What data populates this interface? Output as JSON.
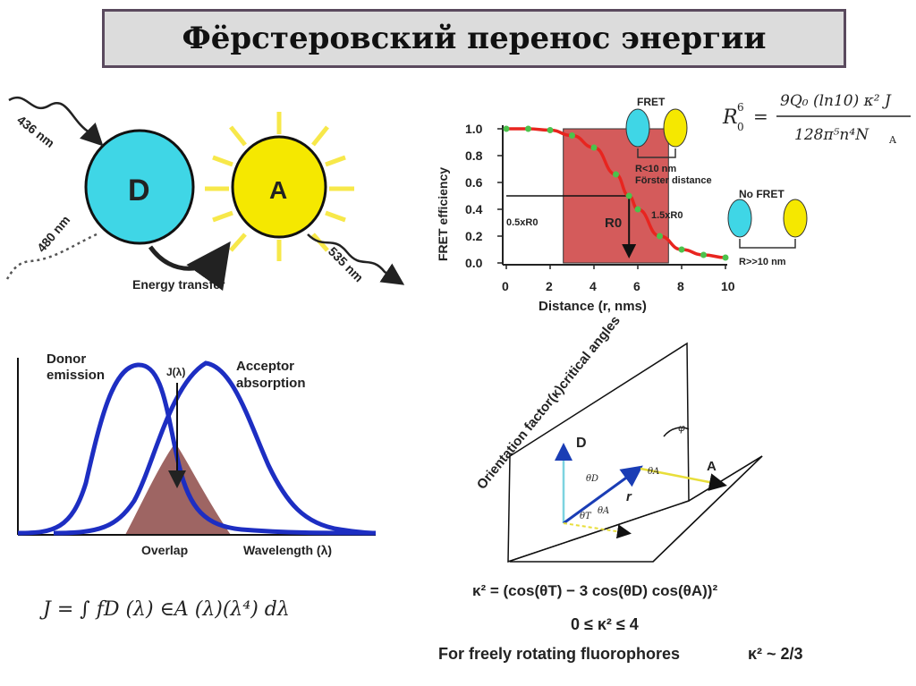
{
  "title": "Фёрстеровский перенос энергии",
  "donor_acceptor": {
    "donor_label": "D",
    "acceptor_label": "A",
    "excitation": "436 nm",
    "donor_emission": "480 nm",
    "acceptor_emission": "535 nm",
    "transfer": "Energy transfer",
    "colors": {
      "donor": "#3fd6e6",
      "acceptor": "#f5e800"
    }
  },
  "fret_chart": {
    "ylabel": "FRET efficiency",
    "xlabel": "Distance (r, nms)",
    "x_ticks": [
      "0",
      "2",
      "4",
      "6",
      "8",
      "10"
    ],
    "y_ticks": [
      "0.0",
      "0.2",
      "0.4",
      "0.6",
      "0.8",
      "1.0"
    ],
    "r0_label": "R0",
    "half_r0": "0.5xR0",
    "one_half_r0": "1.5xR0",
    "fret_label": "FRET",
    "fret_cond": "R<10 nm",
    "forster": "Förster distance",
    "nofret_label": "No FRET",
    "nofret_cond": "R>>10 nm"
  },
  "chart_data": {
    "type": "line",
    "xlabel": "Distance (r, nms)",
    "ylabel": "FRET efficiency",
    "xlim": [
      0,
      10
    ],
    "ylim": [
      0,
      1
    ],
    "x": [
      0,
      1,
      2,
      3,
      4,
      5,
      5.6,
      6,
      7,
      8,
      9,
      10
    ],
    "values": [
      1.0,
      1.0,
      0.99,
      0.95,
      0.86,
      0.66,
      0.5,
      0.4,
      0.2,
      0.1,
      0.06,
      0.04
    ],
    "shaded_region": [
      2.6,
      7.4
    ],
    "grid": false
  },
  "formula_r0": {
    "lhs": "R",
    "lhs_sup": "6",
    "lhs_sub": "0",
    "numerator": "9Q₀ (ln10) κ² J",
    "denominator": "128π⁵n⁴N",
    "den_sub": "A"
  },
  "overlap": {
    "donor": "Donor",
    "donor2": "emission",
    "acceptor": "Acceptor",
    "acceptor2": "absorption",
    "j_label": "J(λ)",
    "overlap": "Overlap",
    "wavelength": "Wavelength (λ)",
    "j_formula": "J = ∫ fD (λ) ∈A (λ)(λ⁴) dλ"
  },
  "orientation": {
    "title": "Orientation factor(κ)critical angles",
    "d_label": "D",
    "a_label": "A",
    "r_label": "r",
    "theta_d": "θD",
    "theta_a": "θA",
    "theta_t": "θT",
    "phi": "φ",
    "kappa_formula": "κ² = (cos(θT) − 3 cos(θD) cos(θA))²",
    "range": "0 ≤ κ² ≤ 4",
    "free": "For freely rotating fluorophores",
    "free_val": "κ² ~ 2/3"
  }
}
